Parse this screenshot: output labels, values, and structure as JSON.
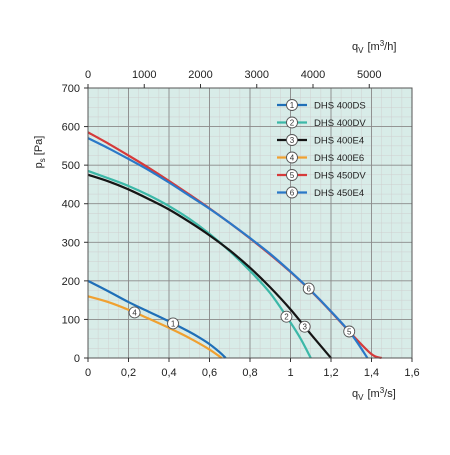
{
  "chart_data": {
    "type": "line",
    "colors": {
      "plot_background": "#d8ece8",
      "grid": "#8a8a8a",
      "minor_grid": "#cfcfcf",
      "frame": "#555555"
    },
    "x_bottom": {
      "label_main": "q",
      "label_sub": "V",
      "label_unit": "[m",
      "label_sup": "3",
      "label_end": "/s]",
      "range": [
        0,
        1.6
      ],
      "ticks": [
        0,
        0.2,
        0.4,
        0.6,
        0.8,
        1,
        1.2,
        1.4,
        1.6
      ],
      "tick_labels": [
        "0",
        "0,2",
        "0,4",
        "0,6",
        "0,8",
        "1",
        "1,2",
        "1,4",
        "1,6"
      ]
    },
    "x_top": {
      "label_main": "q",
      "label_sub": "V",
      "label_unit": "[m",
      "label_sup": "3",
      "label_end": "/h]",
      "ticks": [
        0,
        1000,
        2000,
        3000,
        4000,
        5000
      ],
      "tick_labels": [
        "0",
        "1000",
        "2000",
        "3000",
        "4000",
        "5000"
      ]
    },
    "y": {
      "label_main": "p",
      "label_sub": "s",
      "label_unit": "[Pa]",
      "range": [
        0,
        700
      ],
      "ticks": [
        0,
        100,
        200,
        300,
        400,
        500,
        600,
        700
      ],
      "tick_labels": [
        "0",
        "100",
        "200",
        "300",
        "400",
        "500",
        "600",
        "700"
      ]
    },
    "grid": true,
    "legend_position": "top-right",
    "series": [
      {
        "id": "1",
        "name": "DHS 400DS",
        "color": "#1f6fb8",
        "marker_at": 0.42,
        "x": [
          0,
          0.1,
          0.2,
          0.3,
          0.4,
          0.5,
          0.55,
          0.6,
          0.65,
          0.68
        ],
        "y": [
          200,
          173,
          145,
          120,
          95,
          68,
          53,
          36,
          15,
          0
        ]
      },
      {
        "id": "2",
        "name": "DHS 400DV",
        "color": "#3cb8a8",
        "marker_at": 0.98,
        "x": [
          0,
          0.1,
          0.2,
          0.3,
          0.4,
          0.5,
          0.6,
          0.7,
          0.8,
          0.9,
          1.0,
          1.05,
          1.1
        ],
        "y": [
          485,
          466,
          446,
          422,
          394,
          361,
          322,
          277,
          226,
          168,
          92,
          50,
          0
        ]
      },
      {
        "id": "3",
        "name": "DHS 400E4",
        "color": "#151515",
        "marker_at": 1.07,
        "x": [
          0,
          0.1,
          0.2,
          0.3,
          0.4,
          0.5,
          0.6,
          0.7,
          0.8,
          0.9,
          1.0,
          1.1,
          1.2
        ],
        "y": [
          475,
          458,
          437,
          412,
          385,
          353,
          318,
          279,
          234,
          183,
          126,
          62,
          0
        ]
      },
      {
        "id": "4",
        "name": "DHS 400E6",
        "color": "#f0a030",
        "marker_at": 0.23,
        "x": [
          0,
          0.1,
          0.2,
          0.3,
          0.4,
          0.5,
          0.6,
          0.66
        ],
        "y": [
          160,
          145,
          125,
          102,
          78,
          52,
          22,
          0
        ]
      },
      {
        "id": "5",
        "name": "DHS 450DV",
        "color": "#d63a3a",
        "marker_at": 1.29,
        "x": [
          0,
          0.1,
          0.2,
          0.3,
          0.4,
          0.5,
          0.6,
          0.7,
          0.8,
          0.9,
          1.0,
          1.1,
          1.2,
          1.3,
          1.4,
          1.45
        ],
        "y": [
          585,
          556,
          525,
          493,
          459,
          424,
          388,
          350,
          310,
          268,
          223,
          174,
          120,
          63,
          10,
          0
        ]
      },
      {
        "id": "6",
        "name": "DHS 450E4",
        "color": "#2a78c8",
        "marker_at": 1.09,
        "x": [
          0,
          0.1,
          0.2,
          0.3,
          0.4,
          0.5,
          0.6,
          0.7,
          0.8,
          0.9,
          1.0,
          1.1,
          1.2,
          1.3,
          1.38
        ],
        "y": [
          570,
          544,
          516,
          487,
          455,
          421,
          387,
          350,
          311,
          270,
          224,
          175,
          121,
          62,
          0
        ]
      }
    ]
  }
}
